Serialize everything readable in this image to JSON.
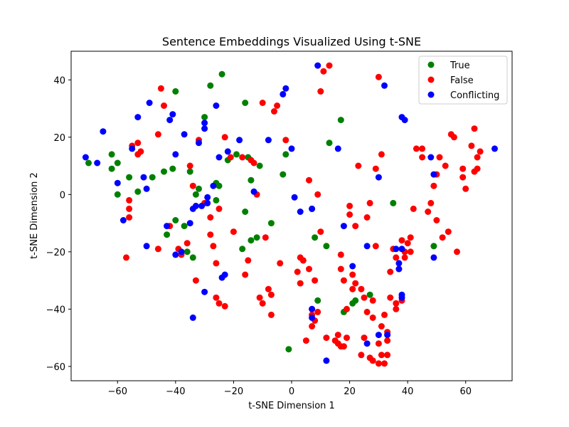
{
  "chart_data": {
    "type": "scatter",
    "title": "Sentence Embeddings Visualized Using t-SNE",
    "xlabel": "t-SNE Dimension 1",
    "ylabel": "t-SNE Dimension 2",
    "xlim": [
      -76,
      76
    ],
    "ylim": [
      -65,
      50
    ],
    "xticks": [
      -60,
      -40,
      -20,
      0,
      20,
      40,
      60
    ],
    "yticks": [
      -60,
      -40,
      -20,
      0,
      20,
      40
    ],
    "grid": false,
    "legend_position": "top-right",
    "series": [
      {
        "name": "True",
        "color": "#008000",
        "points": [
          [
            -70,
            11
          ],
          [
            -62,
            9
          ],
          [
            -62,
            14
          ],
          [
            -60,
            11
          ],
          [
            -60,
            0
          ],
          [
            -56,
            6
          ],
          [
            -53,
            1
          ],
          [
            -48,
            6
          ],
          [
            -44,
            8
          ],
          [
            -43,
            -14
          ],
          [
            -41,
            9
          ],
          [
            -40,
            36
          ],
          [
            -40,
            -9
          ],
          [
            -37,
            -11
          ],
          [
            -36,
            -20
          ],
          [
            -35,
            8
          ],
          [
            -34,
            -22
          ],
          [
            -33,
            0
          ],
          [
            -32,
            2
          ],
          [
            -30,
            27
          ],
          [
            -28,
            38
          ],
          [
            -26,
            -2
          ],
          [
            -26,
            4
          ],
          [
            -25,
            3
          ],
          [
            -24,
            42
          ],
          [
            -22,
            12
          ],
          [
            -19,
            14
          ],
          [
            -17,
            -19
          ],
          [
            -16,
            32
          ],
          [
            -16,
            -6
          ],
          [
            -15,
            13
          ],
          [
            -14,
            5
          ],
          [
            -14,
            -16
          ],
          [
            -12,
            -15
          ],
          [
            -11,
            10
          ],
          [
            -7,
            -10
          ],
          [
            -3,
            7
          ],
          [
            -2,
            14
          ],
          [
            -1,
            -54
          ],
          [
            4,
            -23
          ],
          [
            7,
            -5
          ],
          [
            8,
            -15
          ],
          [
            9,
            -37
          ],
          [
            12,
            -18
          ],
          [
            13,
            18
          ],
          [
            17,
            26
          ],
          [
            18,
            -41
          ],
          [
            21,
            -38
          ],
          [
            22,
            -37
          ],
          [
            27,
            -35
          ],
          [
            35,
            -3
          ],
          [
            49,
            -18
          ]
        ]
      },
      {
        "name": "False",
        "color": "#ff0000",
        "points": [
          [
            -57,
            -22
          ],
          [
            -56,
            -2
          ],
          [
            -56,
            -5
          ],
          [
            -56,
            -8
          ],
          [
            -55,
            17
          ],
          [
            -53,
            18
          ],
          [
            -53,
            14
          ],
          [
            -52,
            15
          ],
          [
            -46,
            -19
          ],
          [
            -46,
            21
          ],
          [
            -45,
            37
          ],
          [
            -44,
            31
          ],
          [
            -42,
            -11
          ],
          [
            -39,
            -19
          ],
          [
            -38,
            -21
          ],
          [
            -36,
            -17
          ],
          [
            -35,
            10
          ],
          [
            -34,
            3
          ],
          [
            -33,
            -30
          ],
          [
            -32,
            19
          ],
          [
            -30,
            -3
          ],
          [
            -28,
            -14
          ],
          [
            -28,
            -8
          ],
          [
            -27,
            -18
          ],
          [
            -26,
            -24
          ],
          [
            -26,
            -36
          ],
          [
            -25,
            -38
          ],
          [
            -25,
            -5
          ],
          [
            -23,
            -39
          ],
          [
            -23,
            20
          ],
          [
            -21,
            13
          ],
          [
            -20,
            -13
          ],
          [
            -17,
            13
          ],
          [
            -16,
            -28
          ],
          [
            -15,
            -23
          ],
          [
            -14,
            12
          ],
          [
            -13,
            11
          ],
          [
            -11,
            -36
          ],
          [
            -10,
            -38
          ],
          [
            -10,
            32
          ],
          [
            -9,
            -15
          ],
          [
            -8,
            -33
          ],
          [
            -7,
            -35
          ],
          [
            -7,
            -42
          ],
          [
            -6,
            29
          ],
          [
            -5,
            31
          ],
          [
            -4,
            -24
          ],
          [
            -2,
            19
          ],
          [
            2,
            -27
          ],
          [
            3,
            -22
          ],
          [
            4,
            -23
          ],
          [
            5,
            -51
          ],
          [
            6,
            -26
          ],
          [
            6,
            5
          ],
          [
            7,
            -40
          ],
          [
            7,
            -42
          ],
          [
            7,
            -46
          ],
          [
            8,
            -44
          ],
          [
            8,
            -30
          ],
          [
            9,
            -41
          ],
          [
            9,
            0
          ],
          [
            10,
            -13
          ],
          [
            10,
            36
          ],
          [
            11,
            43
          ],
          [
            12,
            -50
          ],
          [
            13,
            45
          ],
          [
            15,
            -51
          ],
          [
            16,
            -52
          ],
          [
            16,
            -49
          ],
          [
            17,
            -53
          ],
          [
            17,
            -21
          ],
          [
            17,
            -26
          ],
          [
            18,
            -53
          ],
          [
            18,
            -30
          ],
          [
            19,
            -50
          ],
          [
            19,
            -40
          ],
          [
            20,
            -4
          ],
          [
            20,
            -7
          ],
          [
            21,
            -28
          ],
          [
            21,
            -33
          ],
          [
            22,
            -31
          ],
          [
            22,
            -11
          ],
          [
            23,
            10
          ],
          [
            24,
            -33
          ],
          [
            24,
            -56
          ],
          [
            25,
            -36
          ],
          [
            25,
            -50
          ],
          [
            26,
            -41
          ],
          [
            26,
            -8
          ],
          [
            27,
            -3
          ],
          [
            27,
            -57
          ],
          [
            28,
            -37
          ],
          [
            28,
            -58
          ],
          [
            28,
            -43
          ],
          [
            29,
            -18
          ],
          [
            30,
            -52
          ],
          [
            30,
            -59
          ],
          [
            30,
            41
          ],
          [
            31,
            -46
          ],
          [
            31,
            -56
          ],
          [
            32,
            -42
          ],
          [
            32,
            -59
          ],
          [
            33,
            -48
          ],
          [
            33,
            -51
          ],
          [
            33,
            -56
          ],
          [
            34,
            -27
          ],
          [
            34,
            -36
          ],
          [
            35,
            -19
          ],
          [
            36,
            -38
          ],
          [
            36,
            -40
          ],
          [
            36,
            -22
          ],
          [
            37,
            -26
          ],
          [
            38,
            -16
          ],
          [
            38,
            -37
          ],
          [
            39,
            -22
          ],
          [
            39,
            -20
          ],
          [
            40,
            -17
          ],
          [
            41,
            -15
          ],
          [
            41,
            -20
          ],
          [
            42,
            -5
          ],
          [
            43,
            16
          ],
          [
            45,
            16
          ],
          [
            45,
            13
          ],
          [
            47,
            -6
          ],
          [
            48,
            -3
          ],
          [
            49,
            3
          ],
          [
            50,
            7
          ],
          [
            50,
            -9
          ],
          [
            51,
            13
          ],
          [
            52,
            -15
          ],
          [
            53,
            10
          ],
          [
            54,
            -13
          ],
          [
            55,
            21
          ],
          [
            56,
            20
          ],
          [
            57,
            -20
          ],
          [
            59,
            9
          ],
          [
            59,
            6
          ],
          [
            60,
            2
          ],
          [
            62,
            17
          ],
          [
            63,
            8
          ],
          [
            63,
            23
          ],
          [
            64,
            9
          ],
          [
            64,
            13
          ],
          [
            65,
            15
          ],
          [
            3,
            -31
          ],
          [
            -12,
            0
          ],
          [
            31,
            14
          ],
          [
            29,
            9
          ]
        ]
      },
      {
        "name": "Conflicting",
        "color": "#0000ff",
        "points": [
          [
            -71,
            13
          ],
          [
            -67,
            11
          ],
          [
            -65,
            22
          ],
          [
            -60,
            4
          ],
          [
            -58,
            -9
          ],
          [
            -55,
            16
          ],
          [
            -53,
            27
          ],
          [
            -51,
            6
          ],
          [
            -50,
            -18
          ],
          [
            -50,
            2
          ],
          [
            -49,
            32
          ],
          [
            -43,
            -11
          ],
          [
            -42,
            26
          ],
          [
            -41,
            28
          ],
          [
            -40,
            14
          ],
          [
            -40,
            -21
          ],
          [
            -38,
            -20
          ],
          [
            -37,
            21
          ],
          [
            -35,
            -10
          ],
          [
            -34,
            -43
          ],
          [
            -34,
            -5
          ],
          [
            -33,
            -4
          ],
          [
            -32,
            18
          ],
          [
            -31,
            -4
          ],
          [
            -30,
            25
          ],
          [
            -30,
            23
          ],
          [
            -30,
            -34
          ],
          [
            -29,
            -1
          ],
          [
            -29,
            -3
          ],
          [
            -27,
            3
          ],
          [
            -26,
            31
          ],
          [
            -25,
            13
          ],
          [
            -24,
            -29
          ],
          [
            -23,
            -28
          ],
          [
            -22,
            15
          ],
          [
            -18,
            19
          ],
          [
            -13,
            1
          ],
          [
            -8,
            19
          ],
          [
            -3,
            35
          ],
          [
            -2,
            37
          ],
          [
            0,
            16
          ],
          [
            1,
            -1
          ],
          [
            3,
            -6
          ],
          [
            7,
            -5
          ],
          [
            7,
            -40
          ],
          [
            7,
            -43
          ],
          [
            9,
            45
          ],
          [
            12,
            -58
          ],
          [
            16,
            16
          ],
          [
            18,
            -11
          ],
          [
            21,
            -25
          ],
          [
            26,
            -18
          ],
          [
            26,
            -52
          ],
          [
            30,
            6
          ],
          [
            30,
            -49
          ],
          [
            32,
            38
          ],
          [
            33,
            -49
          ],
          [
            36,
            -19
          ],
          [
            37,
            -24
          ],
          [
            37,
            -26
          ],
          [
            38,
            -19
          ],
          [
            38,
            -35
          ],
          [
            38,
            -36
          ],
          [
            38,
            27
          ],
          [
            39,
            26
          ],
          [
            48,
            13
          ],
          [
            49,
            7
          ],
          [
            49,
            -22
          ],
          [
            70,
            16
          ]
        ]
      }
    ]
  }
}
